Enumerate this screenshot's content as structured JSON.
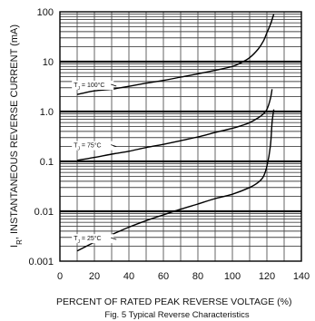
{
  "chart_data": {
    "type": "line",
    "title": "",
    "caption": "Fig. 5  Typical Reverse Characteristics",
    "xlabel": "PERCENT OF RATED PEAK REVERSE VOLTAGE (%)",
    "ylabel": "I_R, INSTANTANEOUS REVERSE CURRENT (mA)",
    "y_scale": "log",
    "xlim": [
      0,
      140
    ],
    "ylim": [
      0.001,
      100
    ],
    "x_ticks": [
      "0",
      "20",
      "40",
      "60",
      "80",
      "100",
      "120",
      "140"
    ],
    "y_ticks": [
      "100",
      "10",
      "1.0",
      "0.1",
      "0.01",
      "0.001"
    ],
    "grid": true,
    "series": [
      {
        "name": "T_J = 100°C",
        "x": [
          10,
          15,
          20,
          25,
          30,
          40,
          50,
          60,
          70,
          80,
          90,
          100,
          105,
          110,
          115,
          118,
          120,
          122,
          124
        ],
        "y": [
          2.2,
          2.4,
          2.6,
          2.7,
          2.8,
          3.2,
          3.7,
          4.2,
          4.9,
          5.7,
          6.7,
          8.0,
          9.5,
          12.0,
          18.0,
          26.0,
          38.0,
          55.0,
          90.0
        ]
      },
      {
        "name": "T_J = 75°C",
        "x": [
          10,
          20,
          30,
          40,
          50,
          60,
          70,
          80,
          90,
          100,
          105,
          110,
          115,
          118,
          120,
          122,
          123
        ],
        "y": [
          0.105,
          0.12,
          0.14,
          0.16,
          0.19,
          0.22,
          0.26,
          0.31,
          0.38,
          0.46,
          0.52,
          0.6,
          0.75,
          0.9,
          1.1,
          1.8,
          2.8
        ]
      },
      {
        "name": "T_J = 25°C",
        "x": [
          10,
          20,
          30,
          40,
          50,
          60,
          70,
          80,
          90,
          100,
          110,
          115,
          118,
          120,
          122,
          123,
          124
        ],
        "y": [
          0.0016,
          0.0024,
          0.0034,
          0.0048,
          0.0065,
          0.0085,
          0.011,
          0.014,
          0.018,
          0.022,
          0.03,
          0.038,
          0.05,
          0.08,
          0.2,
          0.6,
          1.1
        ]
      }
    ],
    "annotations": [
      {
        "text": "T",
        "sub": "J",
        "suffix": " = 100°C",
        "x": 8,
        "y": 3.1
      },
      {
        "text": "T",
        "sub": "J",
        "suffix": " = 75°C",
        "x": 8,
        "y": 0.19
      },
      {
        "text": "T",
        "sub": "J",
        "suffix": " = 25°C",
        "x": 8,
        "y": 0.0026
      }
    ]
  }
}
